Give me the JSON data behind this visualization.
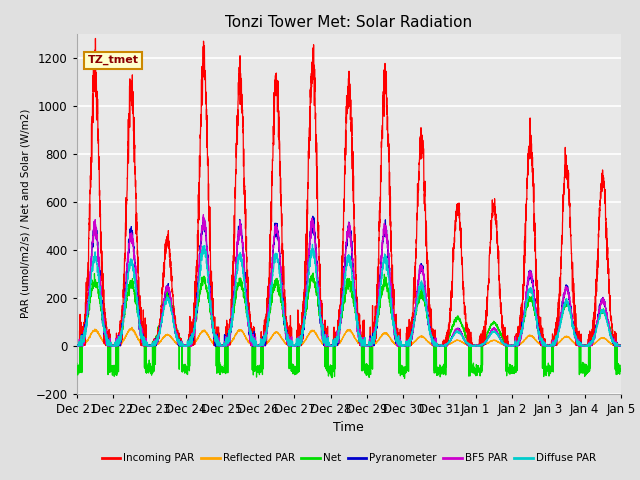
{
  "title": "Tonzi Tower Met: Solar Radiation",
  "ylabel": "PAR (umol/m2/s) / Net and Solar (W/m2)",
  "xlabel": "Time",
  "ylim": [
    -200,
    1300
  ],
  "yticks": [
    -200,
    0,
    200,
    400,
    600,
    800,
    1000,
    1200
  ],
  "label_tag": "TZ_tmet",
  "x_tick_labels": [
    "Dec 21",
    "Dec 22",
    "Dec 23",
    "Dec 24",
    "Dec 25",
    "Dec 26",
    "Dec 27",
    "Dec 28",
    "Dec 29",
    "Dec 30",
    "Dec 31",
    "Jan 1",
    "Jan 2",
    "Jan 3",
    "Jan 4",
    "Jan 5"
  ],
  "bg_color": "#e0e0e0",
  "plot_bg_color": "#e8e8e8",
  "series_colors": {
    "incoming_par": "#ff0000",
    "reflected_par": "#ffa500",
    "net": "#00dd00",
    "pyranometer": "#0000cc",
    "bf5_par": "#cc00cc",
    "diffuse_par": "#00cccc"
  },
  "legend_labels": [
    "Incoming PAR",
    "Reflected PAR",
    "Net",
    "Pyranometer",
    "BF5 PAR",
    "Diffuse PAR"
  ],
  "n_days": 15,
  "peaks": {
    "incoming_par": [
      1150,
      1070,
      440,
      1180,
      1120,
      1095,
      1170,
      1090,
      1105,
      860,
      580,
      590,
      855,
      760,
      700
    ],
    "reflected_par": [
      65,
      70,
      45,
      62,
      65,
      55,
      62,
      65,
      52,
      38,
      22,
      22,
      42,
      38,
      32
    ],
    "net": [
      265,
      260,
      215,
      275,
      265,
      265,
      285,
      265,
      265,
      215,
      115,
      95,
      195,
      175,
      145
    ],
    "pyranometer": [
      490,
      470,
      240,
      520,
      490,
      490,
      510,
      490,
      490,
      330,
      70,
      70,
      300,
      240,
      190
    ],
    "bf5_par": [
      490,
      460,
      240,
      520,
      490,
      490,
      510,
      490,
      490,
      330,
      70,
      70,
      300,
      240,
      190
    ],
    "diffuse_par": [
      370,
      350,
      195,
      405,
      375,
      375,
      395,
      365,
      365,
      255,
      58,
      58,
      235,
      185,
      145
    ]
  },
  "peak_widths": {
    "incoming_par": 0.12,
    "reflected_par": 0.14,
    "net": 0.16,
    "pyranometer": 0.13,
    "bf5_par": 0.13,
    "diffuse_par": 0.14
  },
  "night_base": {
    "net": -100,
    "incoming_par": 0,
    "reflected_par": 0,
    "pyranometer": 0,
    "bf5_par": 0,
    "diffuse_par": 0
  },
  "figsize": [
    6.4,
    4.8
  ],
  "dpi": 100
}
